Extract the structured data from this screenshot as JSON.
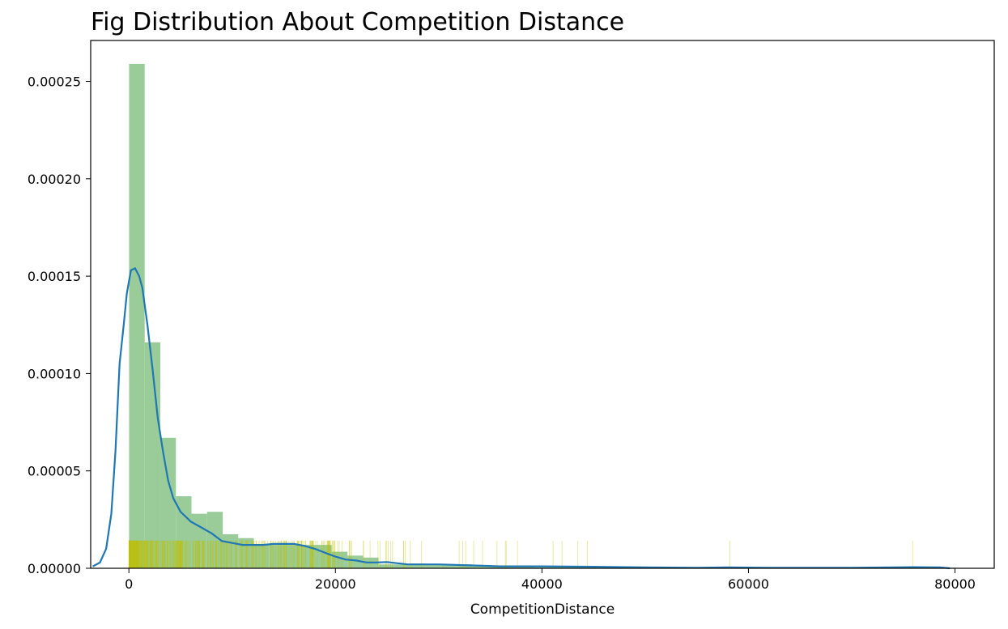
{
  "chart_data": {
    "type": "bar",
    "title": "Fig Distribution About Competition Distance",
    "xlabel": "CompetitionDistance",
    "ylabel": "",
    "xlim": [
      -3700,
      83800
    ],
    "ylim": [
      0,
      0.000271
    ],
    "grid": false,
    "x_ticks": [
      0,
      20000,
      40000,
      60000,
      80000
    ],
    "x_tick_labels": [
      "0",
      "20000",
      "40000",
      "60000",
      "80000"
    ],
    "y_ticks": [
      0.0,
      5e-05,
      0.0001,
      0.00015,
      0.0002,
      0.00025
    ],
    "y_tick_labels": [
      "0.00000",
      "0.00005",
      "0.00010",
      "0.00015",
      "0.00020",
      "0.00025"
    ],
    "colors": {
      "histogram": "#99cc99",
      "kde": "#1f77b4",
      "rug": "#bfbf00"
    },
    "series": [
      {
        "type": "histogram",
        "bin_width": 1510,
        "bin_start": 20,
        "values": [
          0.000259,
          0.000116,
          6.7e-05,
          3.7e-05,
          2.8e-05,
          2.9e-05,
          1.75e-05,
          1.55e-05,
          1.2e-05,
          1.2e-05,
          1.2e-05,
          1.2e-05,
          1.2e-05,
          8.5e-06,
          6.5e-06,
          5.5e-06,
          2e-06,
          2e-06,
          2.5e-06,
          2e-06,
          2e-06,
          2e-06,
          1e-06,
          1e-06,
          1e-06,
          1e-06,
          5e-07,
          5e-07,
          5e-07,
          8e-07,
          5e-07,
          5e-07,
          3e-07,
          3e-07,
          3e-07,
          3e-07,
          3e-07,
          3e-07,
          5e-07,
          3e-07,
          3e-07,
          3e-07,
          3e-07,
          3e-07,
          3e-07,
          3e-07,
          3e-07,
          3e-07,
          3e-07,
          3e-07,
          3e-07,
          3e-07,
          3e-07
        ]
      },
      {
        "type": "line",
        "x": [
          -3500,
          -2800,
          -2200,
          -1700,
          -1300,
          -900,
          -500,
          -200,
          200,
          600,
          1000,
          1300,
          1800,
          2300,
          2800,
          3300,
          3800,
          4300,
          5000,
          6000,
          7000,
          8000,
          9000,
          10000,
          11000,
          12000,
          13000,
          14000,
          15000,
          16000,
          17000,
          18000,
          19000,
          20000,
          21000,
          22000,
          23000,
          24000,
          25000,
          27000,
          30000,
          33000,
          36000,
          40000,
          45000,
          50000,
          55000,
          58000,
          62000,
          70000,
          76000,
          78500,
          79500
        ],
        "y": [
          1e-06,
          3e-06,
          1e-05,
          2.8e-05,
          6e-05,
          0.000105,
          0.000125,
          0.000141,
          0.000153,
          0.000154,
          0.00015,
          0.000144,
          0.000125,
          0.000102,
          7.7e-05,
          6e-05,
          4.5e-05,
          3.6e-05,
          2.9e-05,
          2.4e-05,
          2.1e-05,
          1.8e-05,
          1.4e-05,
          1.3e-05,
          1.2e-05,
          1.2e-05,
          1.2e-05,
          1.25e-05,
          1.25e-05,
          1.25e-05,
          1.15e-05,
          1e-05,
          8e-06,
          6e-06,
          4.5e-06,
          4e-06,
          3e-06,
          3e-06,
          3.2e-06,
          2e-06,
          2e-06,
          1.5e-06,
          1e-06,
          1e-06,
          8e-07,
          5e-07,
          3e-07,
          5e-07,
          3e-07,
          3e-07,
          6e-07,
          5e-07,
          0
        ]
      }
    ],
    "rug_height": 1.42e-05
  }
}
